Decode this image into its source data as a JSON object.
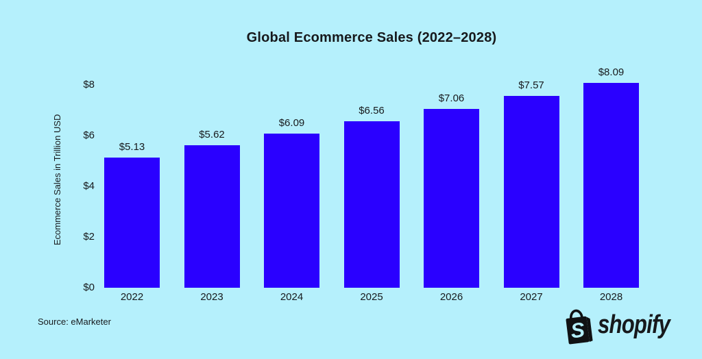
{
  "chart_data": {
    "type": "bar",
    "title": "Global Ecommerce Sales (2022–2028)",
    "categories": [
      "2022",
      "2023",
      "2024",
      "2025",
      "2026",
      "2027",
      "2028"
    ],
    "values": [
      5.13,
      5.62,
      6.09,
      6.56,
      7.06,
      7.57,
      8.09
    ],
    "bar_labels": [
      "$5.13",
      "$5.62",
      "$6.09",
      "$6.56",
      "$7.06",
      "$7.57",
      "$8.09"
    ],
    "xlabel": "",
    "ylabel": "Ecommerce Sales in Trillion USD",
    "ylim": [
      0,
      8
    ],
    "yticks": [
      {
        "value": 0,
        "label": "$0"
      },
      {
        "value": 2,
        "label": "$2"
      },
      {
        "value": 4,
        "label": "$4"
      },
      {
        "value": 6,
        "label": "$6"
      },
      {
        "value": 8,
        "label": "$8"
      }
    ],
    "grid": false,
    "legend": false,
    "bar_color": "#2a00ff",
    "background_color": "#b5f0fc",
    "text_color": "#17191c"
  },
  "footer": {
    "source": "Source: eMarketer",
    "brand": "shopify",
    "brand_icon": "shopify-bag-icon"
  }
}
